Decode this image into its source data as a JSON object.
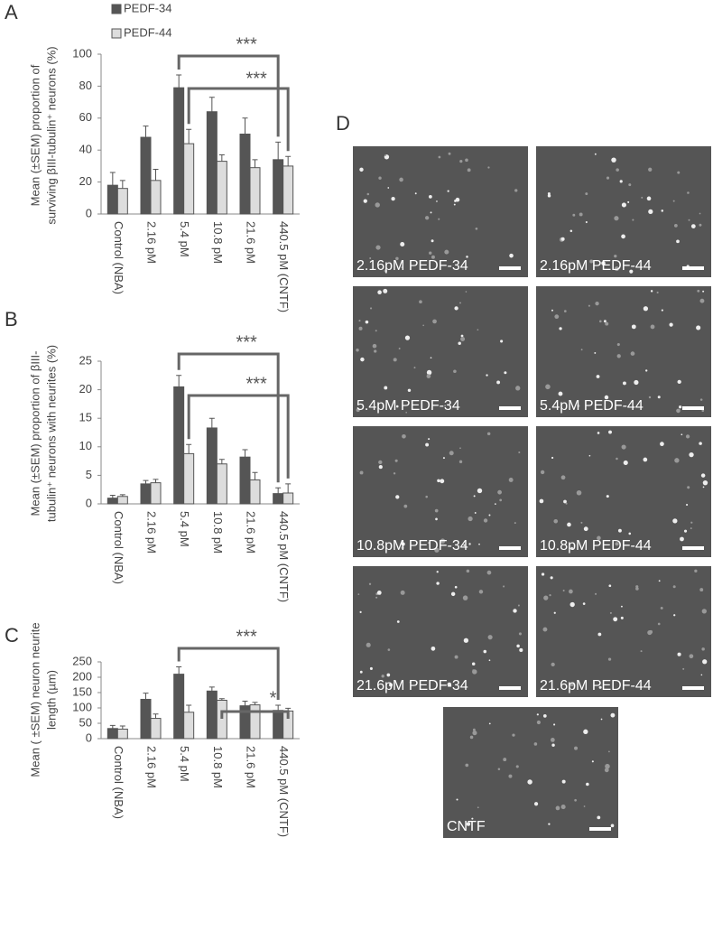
{
  "chart_data": [
    {
      "type": "bar",
      "panel": "A",
      "legend": "top-left",
      "ylabel": [
        "Mean (±SEM)  proportion of",
        "surviving βIII-tubulin⁺ neurons (%)"
      ],
      "categories": [
        "Control (NBA)",
        "2.16 pM",
        "5.4 pM",
        "10.8 pM",
        "21.6 pM",
        "440.5 pM (CNTF)"
      ],
      "series": [
        {
          "name": "PEDF-34",
          "color": "#555555",
          "values": [
            18,
            48,
            79,
            64,
            50,
            34
          ],
          "errors": [
            8,
            7,
            8,
            9,
            10,
            11
          ]
        },
        {
          "name": "PEDF-44",
          "color": "#dddddd",
          "values": [
            16,
            21,
            44,
            33,
            29,
            30
          ],
          "errors": [
            5,
            7,
            9,
            4,
            5,
            6
          ]
        }
      ],
      "ylim": [
        0,
        100
      ],
      "yticks": [
        0,
        20,
        40,
        60,
        80,
        100
      ],
      "annotations": [
        "***",
        "***"
      ]
    },
    {
      "type": "bar",
      "panel": "B",
      "ylabel": [
        "Mean (±SEM) proportion of βIII-",
        "tubulin⁺ neurons with neurites (%)"
      ],
      "categories": [
        "Control (NBA)",
        "2.16 pM",
        "5.4 pM",
        "10.8 pM",
        "21.6 pM",
        "440.5 pM (CNTF)"
      ],
      "series": [
        {
          "name": "PEDF-34",
          "color": "#555555",
          "values": [
            1,
            3.5,
            20.5,
            13.3,
            8.2,
            1.8
          ],
          "errors": [
            0.5,
            0.6,
            2,
            1.7,
            1.3,
            1
          ]
        },
        {
          "name": "PEDF-44",
          "color": "#dddddd",
          "values": [
            1.3,
            3.7,
            8.8,
            7,
            4.2,
            1.9
          ],
          "errors": [
            0.3,
            0.6,
            1.6,
            0.8,
            1.3,
            1.6
          ]
        }
      ],
      "ylim": [
        0,
        25
      ],
      "yticks": [
        0,
        5,
        10,
        15,
        20,
        25
      ],
      "annotations": [
        "***",
        "***"
      ]
    },
    {
      "type": "bar",
      "panel": "C",
      "ylabel": [
        "Mean ( ±SEM) neuron neurite",
        "length (µm)"
      ],
      "categories": [
        "Control (NBA)",
        "2.16 pM",
        "5.4 pM",
        "10.8 pM",
        "21.6 pM",
        "440.5 pM (CNTF)"
      ],
      "series": [
        {
          "name": "PEDF-34",
          "color": "#555555",
          "values": [
            33,
            128,
            210,
            155,
            107,
            92
          ],
          "errors": [
            10,
            20,
            24,
            13,
            15,
            17
          ]
        },
        {
          "name": "PEDF-44",
          "color": "#dddddd",
          "values": [
            31,
            66,
            86,
            125,
            110,
            90
          ],
          "errors": [
            10,
            14,
            23,
            5,
            8,
            9
          ]
        }
      ],
      "ylim": [
        0,
        250
      ],
      "yticks": [
        0,
        50,
        100,
        150,
        200,
        250
      ],
      "annotations": [
        "***",
        "*"
      ]
    }
  ],
  "panel_d": {
    "label": "D",
    "images": [
      "2.16pM PEDF-34",
      "2.16pM PEDF-44",
      "5.4pM PEDF-34",
      "5.4pM PEDF-44",
      "10.8pM PEDF-34",
      "10.8pM PEDF-44",
      "21.6pM PEDF-34",
      "21.6pM PEDF-44",
      "CNTF"
    ]
  }
}
